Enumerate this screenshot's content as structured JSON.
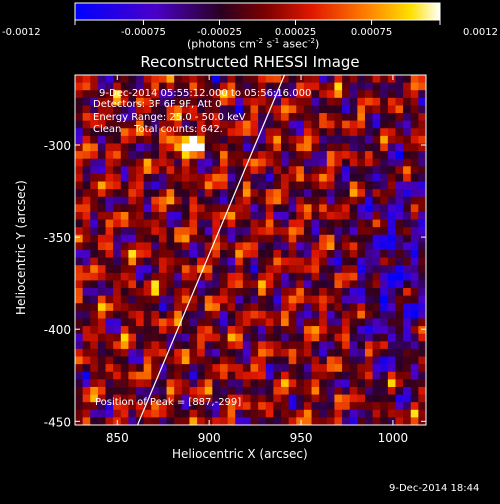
{
  "chart_data": {
    "type": "heatmap",
    "title": "Reconstructed RHESSI Image",
    "xlabel": "Heliocentric X (arcsec)",
    "ylabel": "Heliocentric Y (arcsec)",
    "xlim": [
      827,
      1018
    ],
    "ylim": [
      -452,
      -262
    ],
    "xticks": [
      850,
      900,
      950,
      1000
    ],
    "yticks": [
      -300,
      -350,
      -400,
      -450
    ],
    "colorbar": {
      "min": -0.0012,
      "max": 0.0012,
      "ticks": [
        "-0.0012",
        "-0.00075",
        "-0.00025",
        "0.00025",
        "0.00075",
        "0.0012"
      ],
      "label_main": "(photons cm",
      "label_exp1": "-2",
      "label_mid": " s",
      "label_exp2": "-1",
      "label_mid2": " asec",
      "label_exp3": "-2",
      "label_end": ")"
    },
    "annotations": [
      "9-Dec-2014 05:55:12.000 to 05:56:16.000",
      "Detectors: 3F 6F 9F, Att 0",
      "Energy Range: 25.0 - 50.0 keV",
      "Clean    Total counts: 642."
    ],
    "peak_label": "Position of Peak = [887,-299]",
    "peak": [
      887,
      -299
    ],
    "limb_line": [
      [
        861,
        -452
      ],
      [
        941,
        -262
      ]
    ],
    "grid": false,
    "legend": "none"
  },
  "footer_date": "9-Dec-2014 18:44"
}
